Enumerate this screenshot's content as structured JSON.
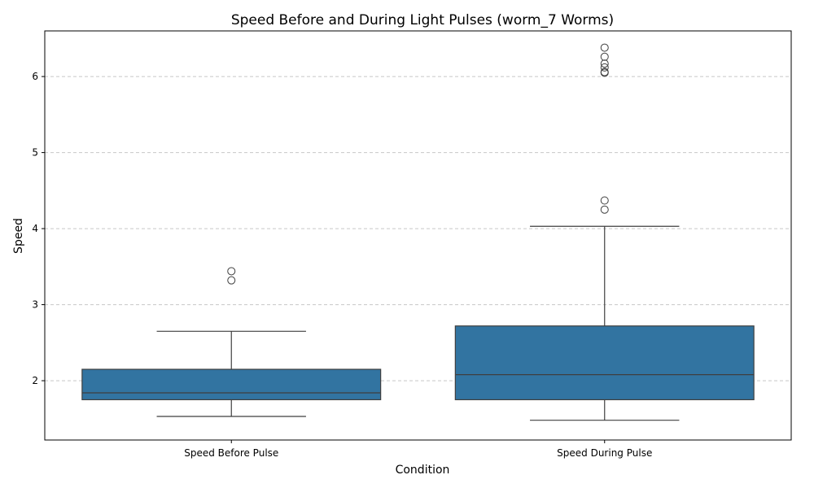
{
  "chart_data": {
    "type": "box",
    "title": "Speed Before and During Light Pulses (worm_7 Worms)",
    "xlabel": "Condition",
    "ylabel": "Speed",
    "ylim": [
      1.22,
      6.6
    ],
    "yticks": [
      2,
      3,
      4,
      5,
      6
    ],
    "grid": "y-dashed",
    "color": "#3274a1",
    "categories": [
      "Speed Before Pulse",
      "Speed During Pulse"
    ],
    "boxes": [
      {
        "category": "Speed Before Pulse",
        "whisker_low": 1.53,
        "q1": 1.75,
        "median": 1.84,
        "q3": 2.15,
        "whisker_high": 2.65,
        "outliers": [
          3.32,
          3.44
        ]
      },
      {
        "category": "Speed During Pulse",
        "whisker_low": 1.48,
        "q1": 1.75,
        "median": 2.08,
        "q3": 2.72,
        "whisker_high": 4.03,
        "outliers": [
          4.25,
          4.37,
          6.05,
          6.06,
          6.12,
          6.17,
          6.26,
          6.38
        ]
      }
    ]
  }
}
